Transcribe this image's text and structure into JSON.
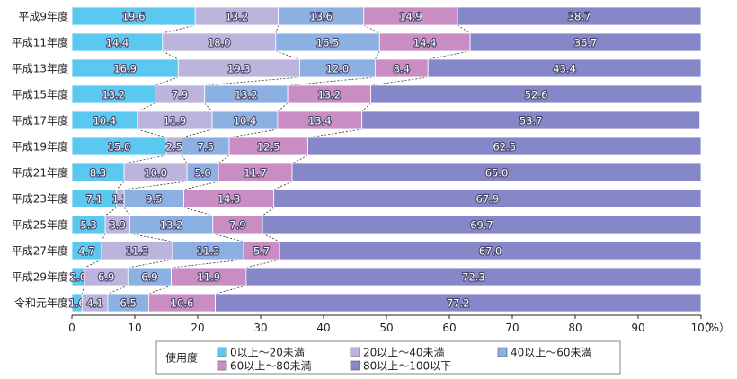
{
  "chart_data": {
    "type": "bar",
    "orientation": "horizontal",
    "stacked": true,
    "categories": [
      "平成9年度",
      "平成11年度",
      "平成13年度",
      "平成15年度",
      "平成17年度",
      "平成19年度",
      "平成21年度",
      "平成23年度",
      "平成25年度",
      "平成27年度",
      "平成29年度",
      "令和元年度"
    ],
    "series": [
      {
        "name": "0以上～20未満",
        "color": "#5bc8f0",
        "values": [
          19.6,
          14.4,
          16.9,
          13.2,
          10.4,
          15.0,
          8.3,
          7.1,
          5.3,
          4.7,
          2.0,
          1.6
        ]
      },
      {
        "name": "20以上～40未満",
        "color": "#bcb4dc",
        "values": [
          13.2,
          18.0,
          19.3,
          7.9,
          11.9,
          2.5,
          10.0,
          1.2,
          3.9,
          11.3,
          6.9,
          4.1
        ]
      },
      {
        "name": "40以上～60未満",
        "color": "#8cb0e2",
        "values": [
          13.6,
          16.5,
          12.0,
          13.2,
          10.4,
          7.5,
          5.0,
          9.5,
          13.2,
          11.3,
          6.9,
          6.5
        ]
      },
      {
        "name": "60以上～80未満",
        "color": "#c98dc4",
        "values": [
          14.9,
          14.4,
          8.4,
          13.2,
          13.4,
          12.5,
          11.7,
          14.3,
          7.9,
          5.7,
          11.9,
          10.6
        ]
      },
      {
        "name": "80以上～100以下",
        "color": "#8587c8",
        "values": [
          38.7,
          36.7,
          43.4,
          52.6,
          53.7,
          62.5,
          65.0,
          67.9,
          69.7,
          67.0,
          72.3,
          77.2
        ]
      }
    ],
    "xlim": [
      0,
      100
    ],
    "xticks": [
      "0",
      "10",
      "20",
      "30",
      "40",
      "50",
      "60",
      "70",
      "80",
      "90",
      "100"
    ],
    "x_unit": "（%）",
    "legend_title": "使用度",
    "legend_position": "bottom",
    "connector_lines": true
  }
}
